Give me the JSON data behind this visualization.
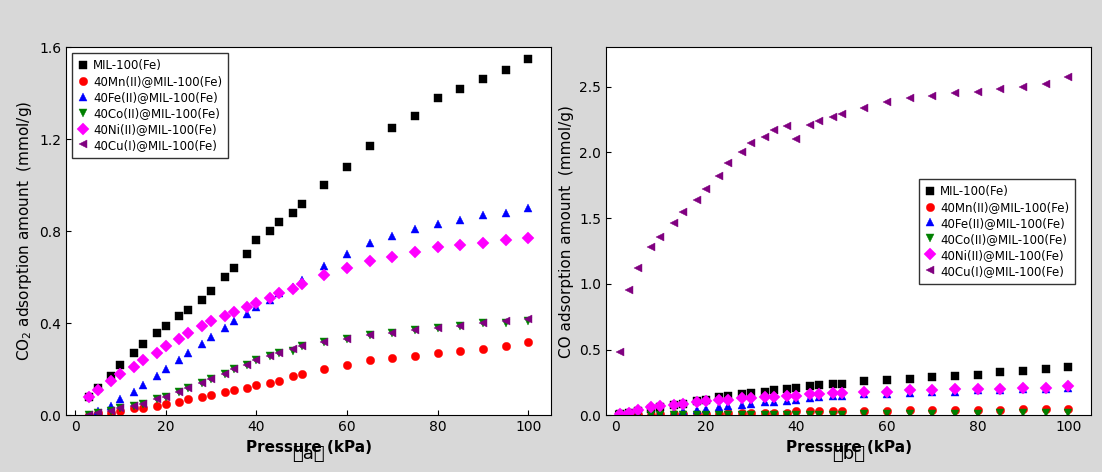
{
  "pressure_a": [
    3,
    5,
    8,
    10,
    13,
    15,
    18,
    20,
    23,
    25,
    28,
    30,
    33,
    35,
    38,
    40,
    43,
    45,
    48,
    50,
    55,
    60,
    65,
    70,
    75,
    80,
    85,
    90,
    95,
    100
  ],
  "co2_MIL100Fe": [
    0.08,
    0.12,
    0.17,
    0.22,
    0.27,
    0.31,
    0.36,
    0.39,
    0.43,
    0.46,
    0.5,
    0.54,
    0.6,
    0.64,
    0.7,
    0.76,
    0.8,
    0.84,
    0.88,
    0.92,
    1.0,
    1.08,
    1.17,
    1.25,
    1.3,
    1.38,
    1.42,
    1.46,
    1.5,
    1.55
  ],
  "co2_40Mn": [
    0.0,
    0.01,
    0.01,
    0.02,
    0.03,
    0.03,
    0.04,
    0.05,
    0.06,
    0.07,
    0.08,
    0.09,
    0.1,
    0.11,
    0.12,
    0.13,
    0.14,
    0.15,
    0.17,
    0.18,
    0.2,
    0.22,
    0.24,
    0.25,
    0.26,
    0.27,
    0.28,
    0.29,
    0.3,
    0.32
  ],
  "co2_40Fe": [
    0.0,
    0.02,
    0.04,
    0.07,
    0.1,
    0.13,
    0.17,
    0.2,
    0.24,
    0.27,
    0.31,
    0.34,
    0.38,
    0.41,
    0.44,
    0.47,
    0.5,
    0.53,
    0.56,
    0.59,
    0.65,
    0.7,
    0.75,
    0.78,
    0.81,
    0.83,
    0.85,
    0.87,
    0.88,
    0.9
  ],
  "co2_40Co": [
    0.0,
    0.01,
    0.02,
    0.03,
    0.04,
    0.05,
    0.07,
    0.08,
    0.1,
    0.12,
    0.14,
    0.16,
    0.18,
    0.2,
    0.22,
    0.24,
    0.26,
    0.27,
    0.28,
    0.3,
    0.32,
    0.33,
    0.35,
    0.36,
    0.37,
    0.38,
    0.39,
    0.4,
    0.4,
    0.41
  ],
  "co2_40Ni": [
    0.08,
    0.11,
    0.15,
    0.18,
    0.21,
    0.24,
    0.27,
    0.3,
    0.33,
    0.36,
    0.39,
    0.41,
    0.43,
    0.45,
    0.47,
    0.49,
    0.51,
    0.53,
    0.55,
    0.57,
    0.61,
    0.64,
    0.67,
    0.69,
    0.71,
    0.73,
    0.74,
    0.75,
    0.76,
    0.77
  ],
  "co2_40Cu": [
    0.0,
    0.01,
    0.02,
    0.03,
    0.04,
    0.05,
    0.07,
    0.08,
    0.1,
    0.12,
    0.14,
    0.16,
    0.18,
    0.2,
    0.22,
    0.24,
    0.26,
    0.27,
    0.29,
    0.3,
    0.32,
    0.33,
    0.35,
    0.36,
    0.37,
    0.38,
    0.39,
    0.4,
    0.41,
    0.42
  ],
  "pressure_b": [
    1,
    3,
    5,
    8,
    10,
    13,
    15,
    18,
    20,
    23,
    25,
    28,
    30,
    33,
    35,
    38,
    40,
    43,
    45,
    48,
    50,
    55,
    60,
    65,
    70,
    75,
    80,
    85,
    90,
    95,
    100
  ],
  "co_MIL100Fe": [
    0.01,
    0.02,
    0.03,
    0.05,
    0.06,
    0.08,
    0.09,
    0.11,
    0.12,
    0.14,
    0.15,
    0.16,
    0.17,
    0.18,
    0.19,
    0.2,
    0.21,
    0.22,
    0.23,
    0.24,
    0.24,
    0.26,
    0.27,
    0.28,
    0.29,
    0.3,
    0.31,
    0.33,
    0.34,
    0.35,
    0.37
  ],
  "co_40Mn": [
    0.0,
    0.0,
    0.0,
    0.0,
    0.01,
    0.01,
    0.01,
    0.01,
    0.01,
    0.01,
    0.02,
    0.02,
    0.02,
    0.02,
    0.02,
    0.02,
    0.03,
    0.03,
    0.03,
    0.03,
    0.03,
    0.03,
    0.03,
    0.04,
    0.04,
    0.04,
    0.04,
    0.04,
    0.05,
    0.05,
    0.05
  ],
  "co_40Fe": [
    0.0,
    0.0,
    0.01,
    0.01,
    0.02,
    0.02,
    0.03,
    0.04,
    0.05,
    0.06,
    0.07,
    0.08,
    0.09,
    0.1,
    0.1,
    0.11,
    0.12,
    0.13,
    0.14,
    0.15,
    0.15,
    0.16,
    0.16,
    0.17,
    0.18,
    0.18,
    0.19,
    0.19,
    0.2,
    0.2,
    0.21
  ],
  "co_40Co": [
    0.0,
    0.0,
    0.0,
    0.0,
    0.0,
    0.0,
    0.0,
    0.0,
    0.0,
    0.0,
    0.0,
    0.0,
    0.0,
    0.0,
    0.0,
    0.0,
    0.0,
    0.0,
    0.0,
    0.0,
    0.0,
    0.01,
    0.01,
    0.01,
    0.01,
    0.01,
    0.01,
    0.02,
    0.02,
    0.02,
    0.02
  ],
  "co_40Ni": [
    0.01,
    0.02,
    0.04,
    0.06,
    0.07,
    0.08,
    0.09,
    0.1,
    0.11,
    0.12,
    0.12,
    0.13,
    0.13,
    0.14,
    0.14,
    0.15,
    0.15,
    0.16,
    0.16,
    0.17,
    0.17,
    0.18,
    0.18,
    0.19,
    0.19,
    0.2,
    0.2,
    0.2,
    0.21,
    0.21,
    0.22
  ],
  "co_40Cu": [
    0.48,
    0.95,
    1.12,
    1.28,
    1.36,
    1.46,
    1.55,
    1.64,
    1.72,
    1.82,
    1.92,
    2.0,
    2.07,
    2.12,
    2.17,
    2.2,
    2.1,
    2.21,
    2.24,
    2.27,
    2.29,
    2.34,
    2.38,
    2.41,
    2.43,
    2.45,
    2.46,
    2.48,
    2.5,
    2.52,
    2.57
  ],
  "colors": [
    "#000000",
    "#ff0000",
    "#0000ff",
    "#008000",
    "#ff00ff",
    "#800080"
  ],
  "markers_a": [
    "s",
    "o",
    "^",
    "v",
    "D",
    "<"
  ],
  "markers_b": [
    "s",
    "o",
    "^",
    "v",
    "D",
    "<"
  ],
  "labels": [
    "MIL-100(Fe)",
    "40Mn(II)@MIL-100(Fe)",
    "40Fe(II)@MIL-100(Fe)",
    "40Co(II)@MIL-100(Fe)",
    "40Ni(II)@MIL-100(Fe)",
    "40Cu(I)@MIL-100(Fe)"
  ],
  "ylabel_a": "CO$_2$ adsorption amount  (mmol/g)",
  "ylabel_b": "CO adsorption amount  (mmol/g)",
  "xlabel": "Pressure (kPa)",
  "ylim_a": [
    0.0,
    1.6
  ],
  "ylim_b": [
    0.0,
    2.8
  ],
  "yticks_a": [
    0.0,
    0.4,
    0.8,
    1.2,
    1.6
  ],
  "yticks_b": [
    0.0,
    0.5,
    1.0,
    1.5,
    2.0,
    2.5
  ],
  "xlim": [
    -2,
    105
  ],
  "xticks": [
    0,
    20,
    40,
    60,
    80,
    100
  ],
  "label_a": "（a）",
  "label_b": "（b）",
  "markersize": 6,
  "fontsize_label": 11,
  "fontsize_tick": 10,
  "fontsize_legend": 8.5,
  "fontsize_caption": 13,
  "outer_bg": "#d8d8d8",
  "inner_bg": "#ffffff"
}
